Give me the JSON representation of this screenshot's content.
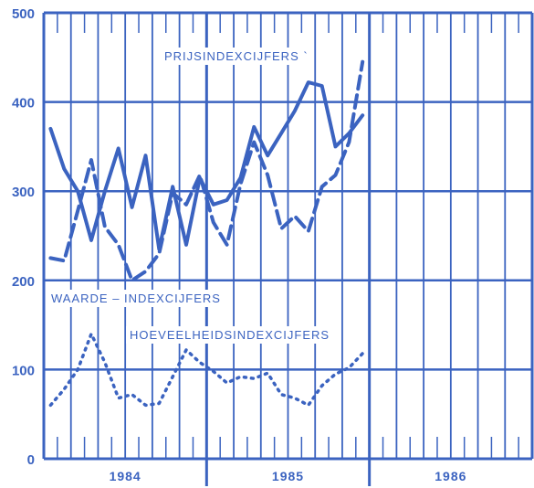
{
  "colors": {
    "ink": "#3b63c0",
    "background": "#ffffff"
  },
  "chart_data": {
    "type": "line",
    "title": "",
    "xlabel": "",
    "ylabel": "",
    "ylim": [
      0,
      500
    ],
    "yticks": [
      "0",
      "100",
      "200",
      "300",
      "400",
      "500"
    ],
    "year_labels": [
      "1984",
      "1985",
      "1986"
    ],
    "grid": true,
    "months_shown": 36,
    "series": [
      {
        "name": "WAARDE – INDEXCIJFERS",
        "style": "solid",
        "x": [
          1,
          2,
          3,
          4,
          5,
          6,
          7,
          8,
          9,
          10,
          11,
          12,
          13,
          14,
          15,
          16,
          17,
          18,
          19,
          20,
          21,
          22,
          23,
          24
        ],
        "values": [
          370,
          325,
          300,
          245,
          300,
          348,
          282,
          340,
          235,
          305,
          240,
          315,
          285,
          290,
          315,
          372,
          340,
          365,
          390,
          422,
          418,
          350,
          365,
          385
        ]
      },
      {
        "name": "PRIJSINDEXCIJFERS",
        "style": "dashed",
        "x": [
          1,
          2,
          3,
          4,
          5,
          6,
          7,
          8,
          9,
          10,
          11,
          12,
          13,
          14,
          15,
          16,
          17,
          18,
          19,
          20,
          21,
          22,
          23,
          24
        ],
        "values": [
          225,
          222,
          278,
          335,
          260,
          240,
          200,
          210,
          230,
          298,
          285,
          318,
          265,
          240,
          308,
          355,
          318,
          258,
          272,
          255,
          305,
          318,
          355,
          445
        ]
      },
      {
        "name": "HOEVEELHEIDSINDEXCIJFERS",
        "style": "dotted",
        "x": [
          1,
          2,
          3,
          4,
          5,
          6,
          7,
          8,
          9,
          10,
          11,
          12,
          13,
          14,
          15,
          16,
          17,
          18,
          19,
          20,
          21,
          22,
          23,
          24
        ],
        "values": [
          60,
          78,
          100,
          140,
          108,
          68,
          72,
          60,
          62,
          92,
          122,
          108,
          98,
          85,
          92,
          90,
          96,
          72,
          68,
          60,
          82,
          95,
          102,
          118
        ]
      }
    ],
    "annotations": [
      {
        "text": "PRIJSINDEXCIJFERS `",
        "series": "dashed"
      },
      {
        "text": "WAARDE – INDEXCIJFERS",
        "series": "solid"
      },
      {
        "text": "HOEVEELHEIDSINDEXCIJFERS",
        "series": "dotted"
      }
    ]
  }
}
